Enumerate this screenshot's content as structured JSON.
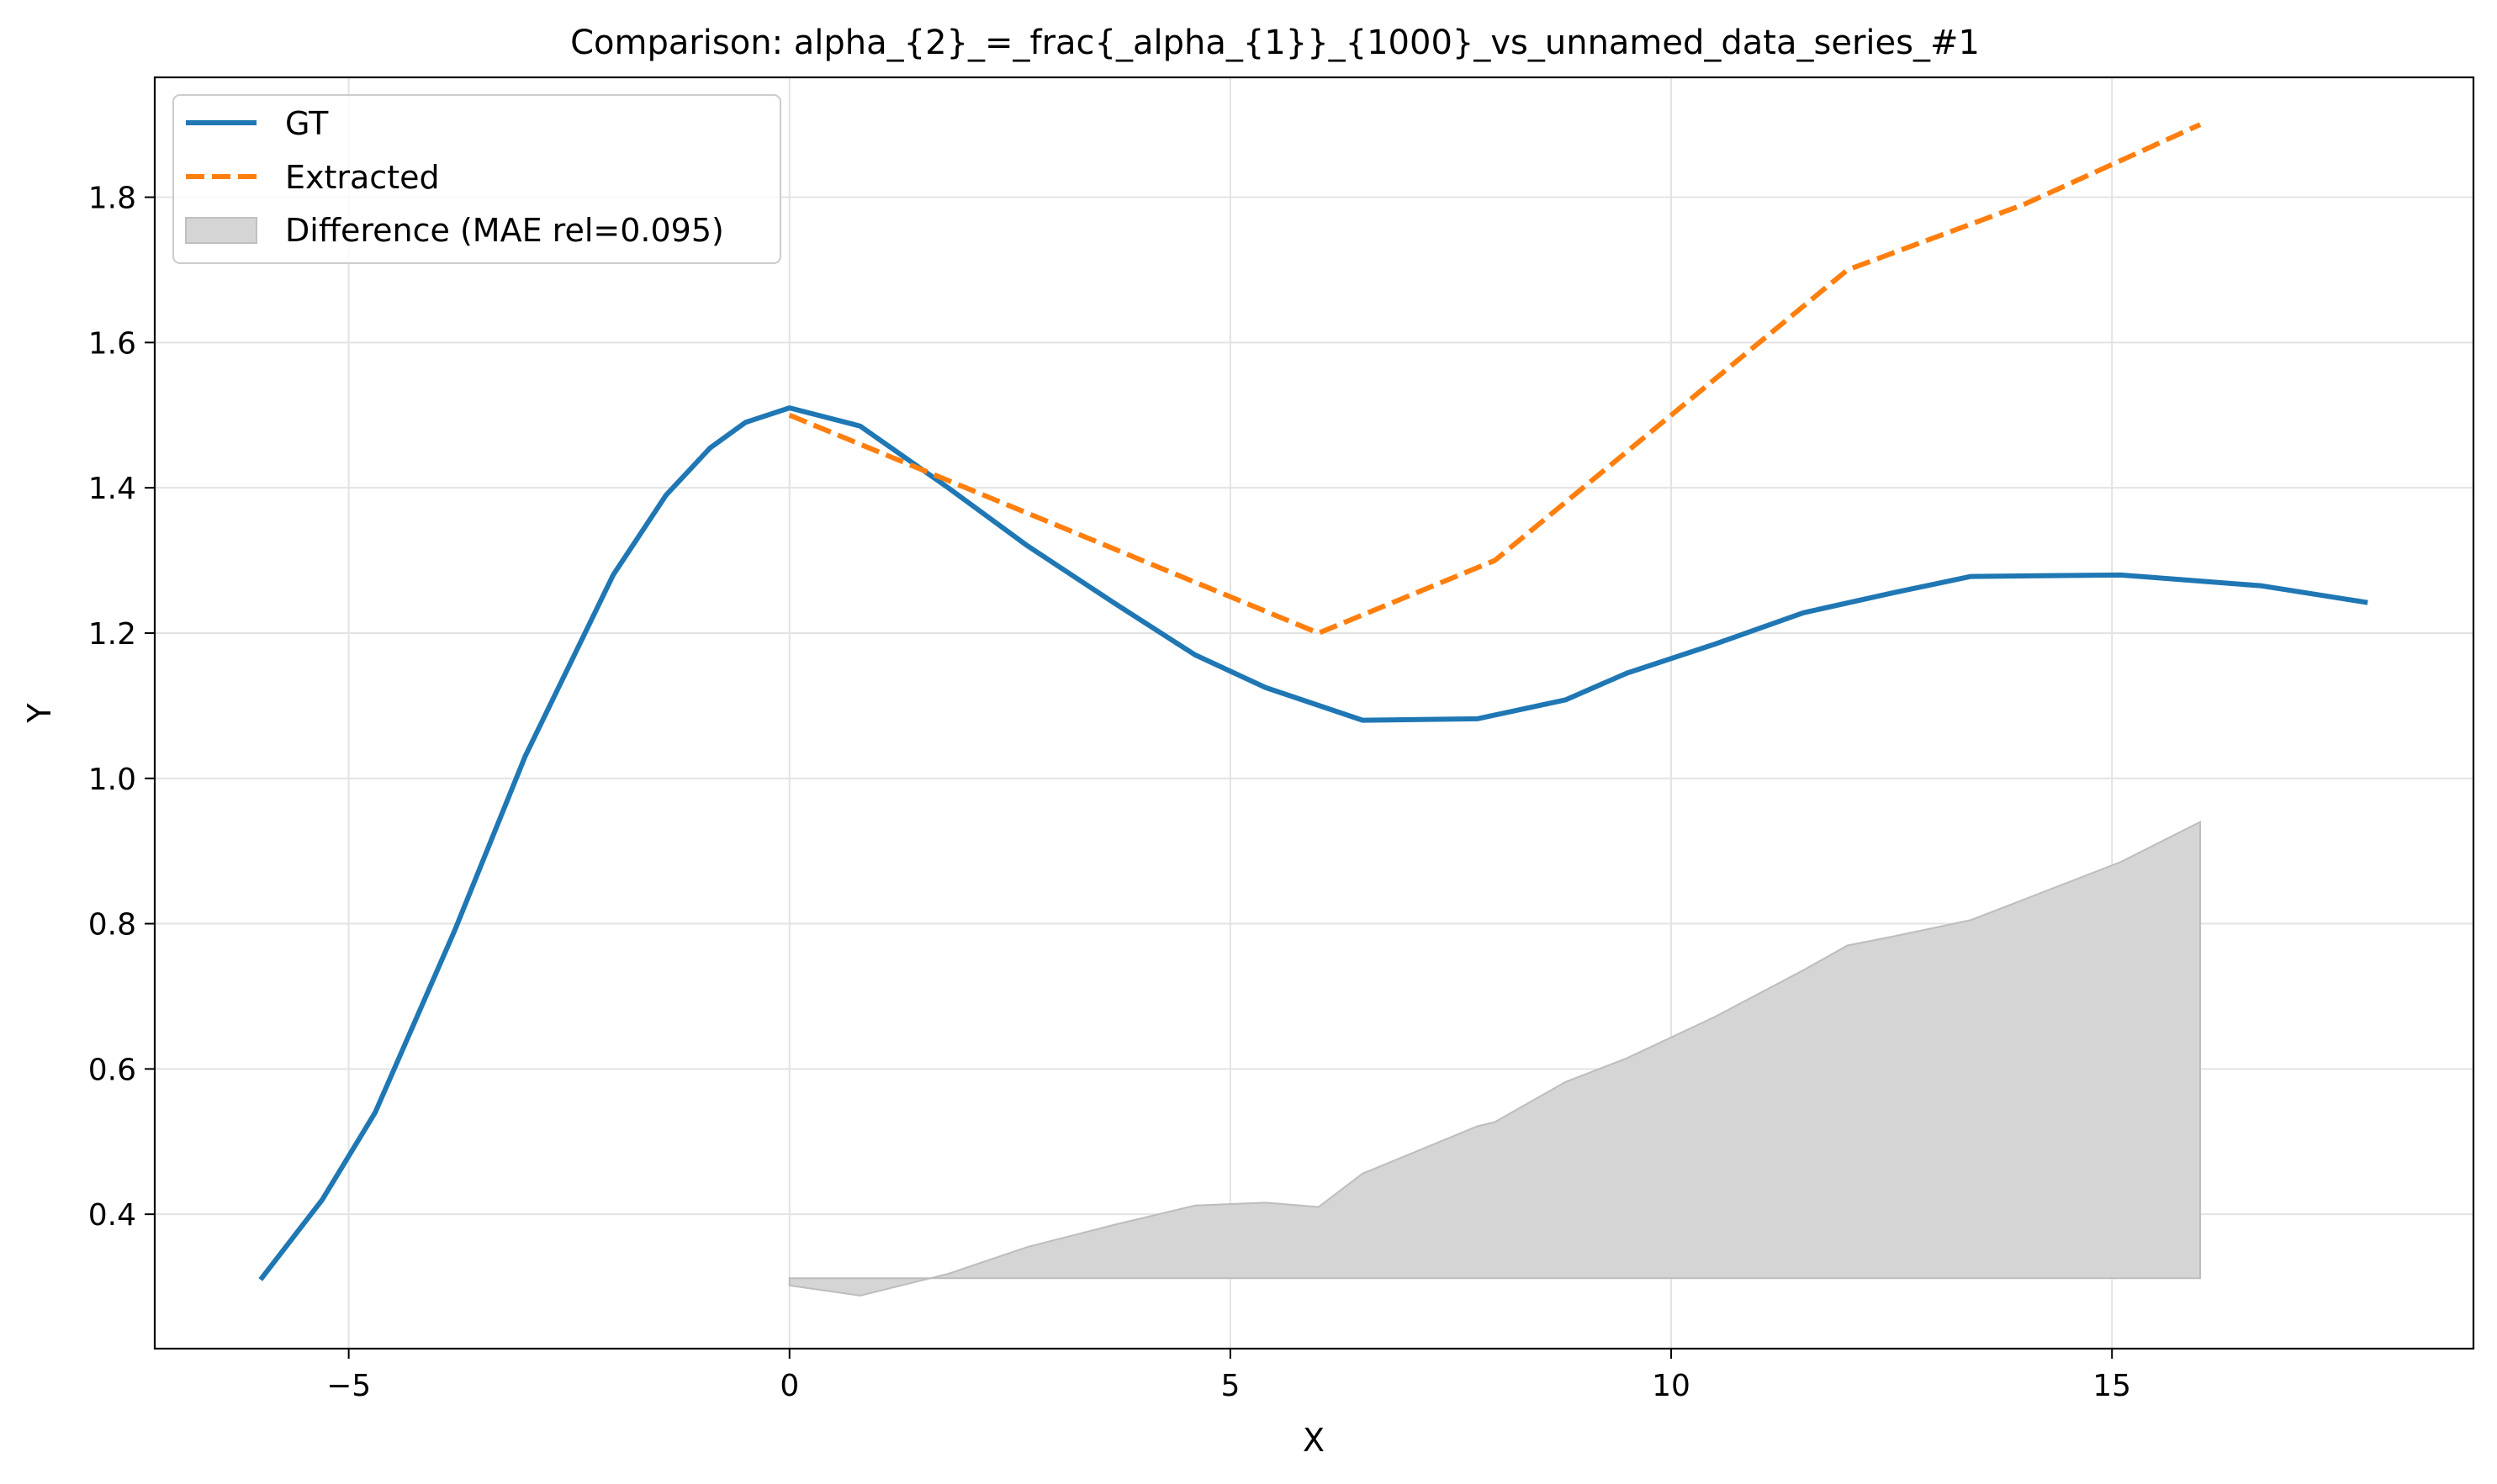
{
  "chart_data": {
    "type": "line",
    "title": "Comparison: alpha_{2}_=_frac{_alpha_{1}}_{1000}_vs_unnamed_data_series_#1",
    "xlabel": "X",
    "ylabel": "Y",
    "xlim": [
      -7.2,
      19.1
    ],
    "ylim": [
      0.215,
      1.965
    ],
    "x_ticks": [
      -5,
      0,
      5,
      10,
      15
    ],
    "x_tick_labels": [
      "−5",
      "0",
      "5",
      "10",
      "15"
    ],
    "y_ticks": [
      0.4,
      0.6,
      0.8,
      1.0,
      1.2,
      1.4,
      1.6,
      1.8
    ],
    "y_tick_labels": [
      "0.4",
      "0.6",
      "0.8",
      "1.0",
      "1.2",
      "1.4",
      "1.6",
      "1.8"
    ],
    "grid": true,
    "legend_position": "top-left",
    "series": [
      {
        "name": "GT",
        "color": "#1f77b4",
        "style": "solid",
        "x": [
          -6.0,
          -5.3,
          -4.7,
          -3.8,
          -3.0,
          -2.0,
          -1.4,
          -0.9,
          -0.5,
          0.0,
          0.8,
          1.8,
          2.7,
          3.7,
          4.6,
          5.4,
          6.5,
          7.8,
          8.8,
          9.5,
          10.5,
          11.5,
          12.5,
          13.4,
          15.1,
          16.7,
          17.9
        ],
        "y": [
          0.31,
          0.42,
          0.54,
          0.79,
          1.03,
          1.28,
          1.39,
          1.455,
          1.49,
          1.51,
          1.485,
          1.4,
          1.32,
          1.24,
          1.17,
          1.125,
          1.08,
          1.082,
          1.108,
          1.145,
          1.185,
          1.228,
          1.255,
          1.278,
          1.28,
          1.265,
          1.242
        ]
      },
      {
        "name": "Extracted",
        "color": "#ff7f0e",
        "style": "dashed",
        "x": [
          0.0,
          6.0,
          8.0,
          10.0,
          12.0,
          14.0,
          16.0
        ],
        "y": [
          1.5,
          1.2,
          1.3,
          1.5,
          1.7,
          1.79,
          1.9
        ]
      }
    ],
    "difference_area": {
      "name": "Difference (MAE rel=0.095)",
      "color": "#d5d5d5",
      "baseline": 0.312,
      "x": [
        0.0,
        0.8,
        1.8,
        2.7,
        3.7,
        4.6,
        5.4,
        6.0,
        6.5,
        7.8,
        8.0,
        8.8,
        9.5,
        10.5,
        11.5,
        12.0,
        12.5,
        13.4,
        15.1,
        16.0
      ],
      "y": [
        0.302,
        0.288,
        0.318,
        0.355,
        0.386,
        0.412,
        0.416,
        0.41,
        0.456,
        0.521,
        0.527,
        0.582,
        0.615,
        0.672,
        0.736,
        0.77,
        0.782,
        0.805,
        0.885,
        0.94
      ]
    }
  }
}
